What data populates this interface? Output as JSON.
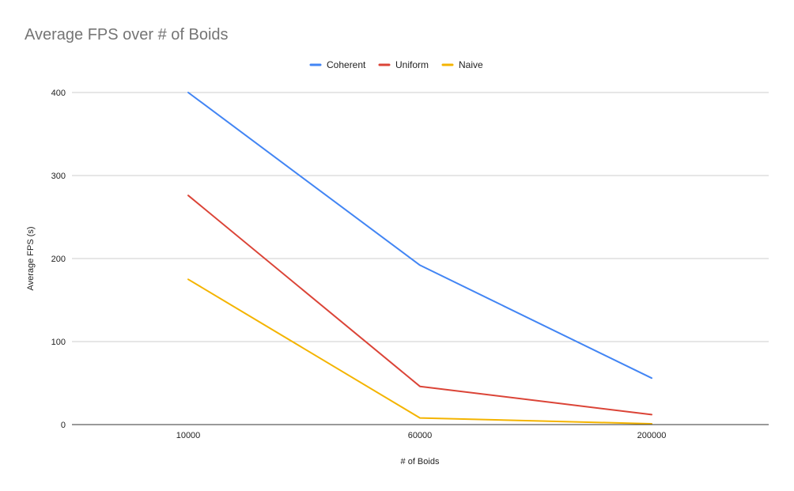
{
  "chart_data": {
    "type": "line",
    "title": "Average FPS over # of Boids",
    "xlabel": "# of Boids",
    "ylabel": "Average FPS (s)",
    "categories": [
      "10000",
      "60000",
      "200000"
    ],
    "ylim": [
      0,
      400
    ],
    "yticks": [
      0,
      100,
      200,
      300,
      400
    ],
    "grid": true,
    "legend_position": "top",
    "series": [
      {
        "name": "Coherent",
        "color": "#4285f4",
        "values": [
          400,
          192,
          56
        ]
      },
      {
        "name": "Uniform",
        "color": "#db4437",
        "values": [
          276,
          46,
          12
        ]
      },
      {
        "name": "Naive",
        "color": "#f4b400",
        "values": [
          175,
          8,
          1
        ]
      }
    ]
  }
}
